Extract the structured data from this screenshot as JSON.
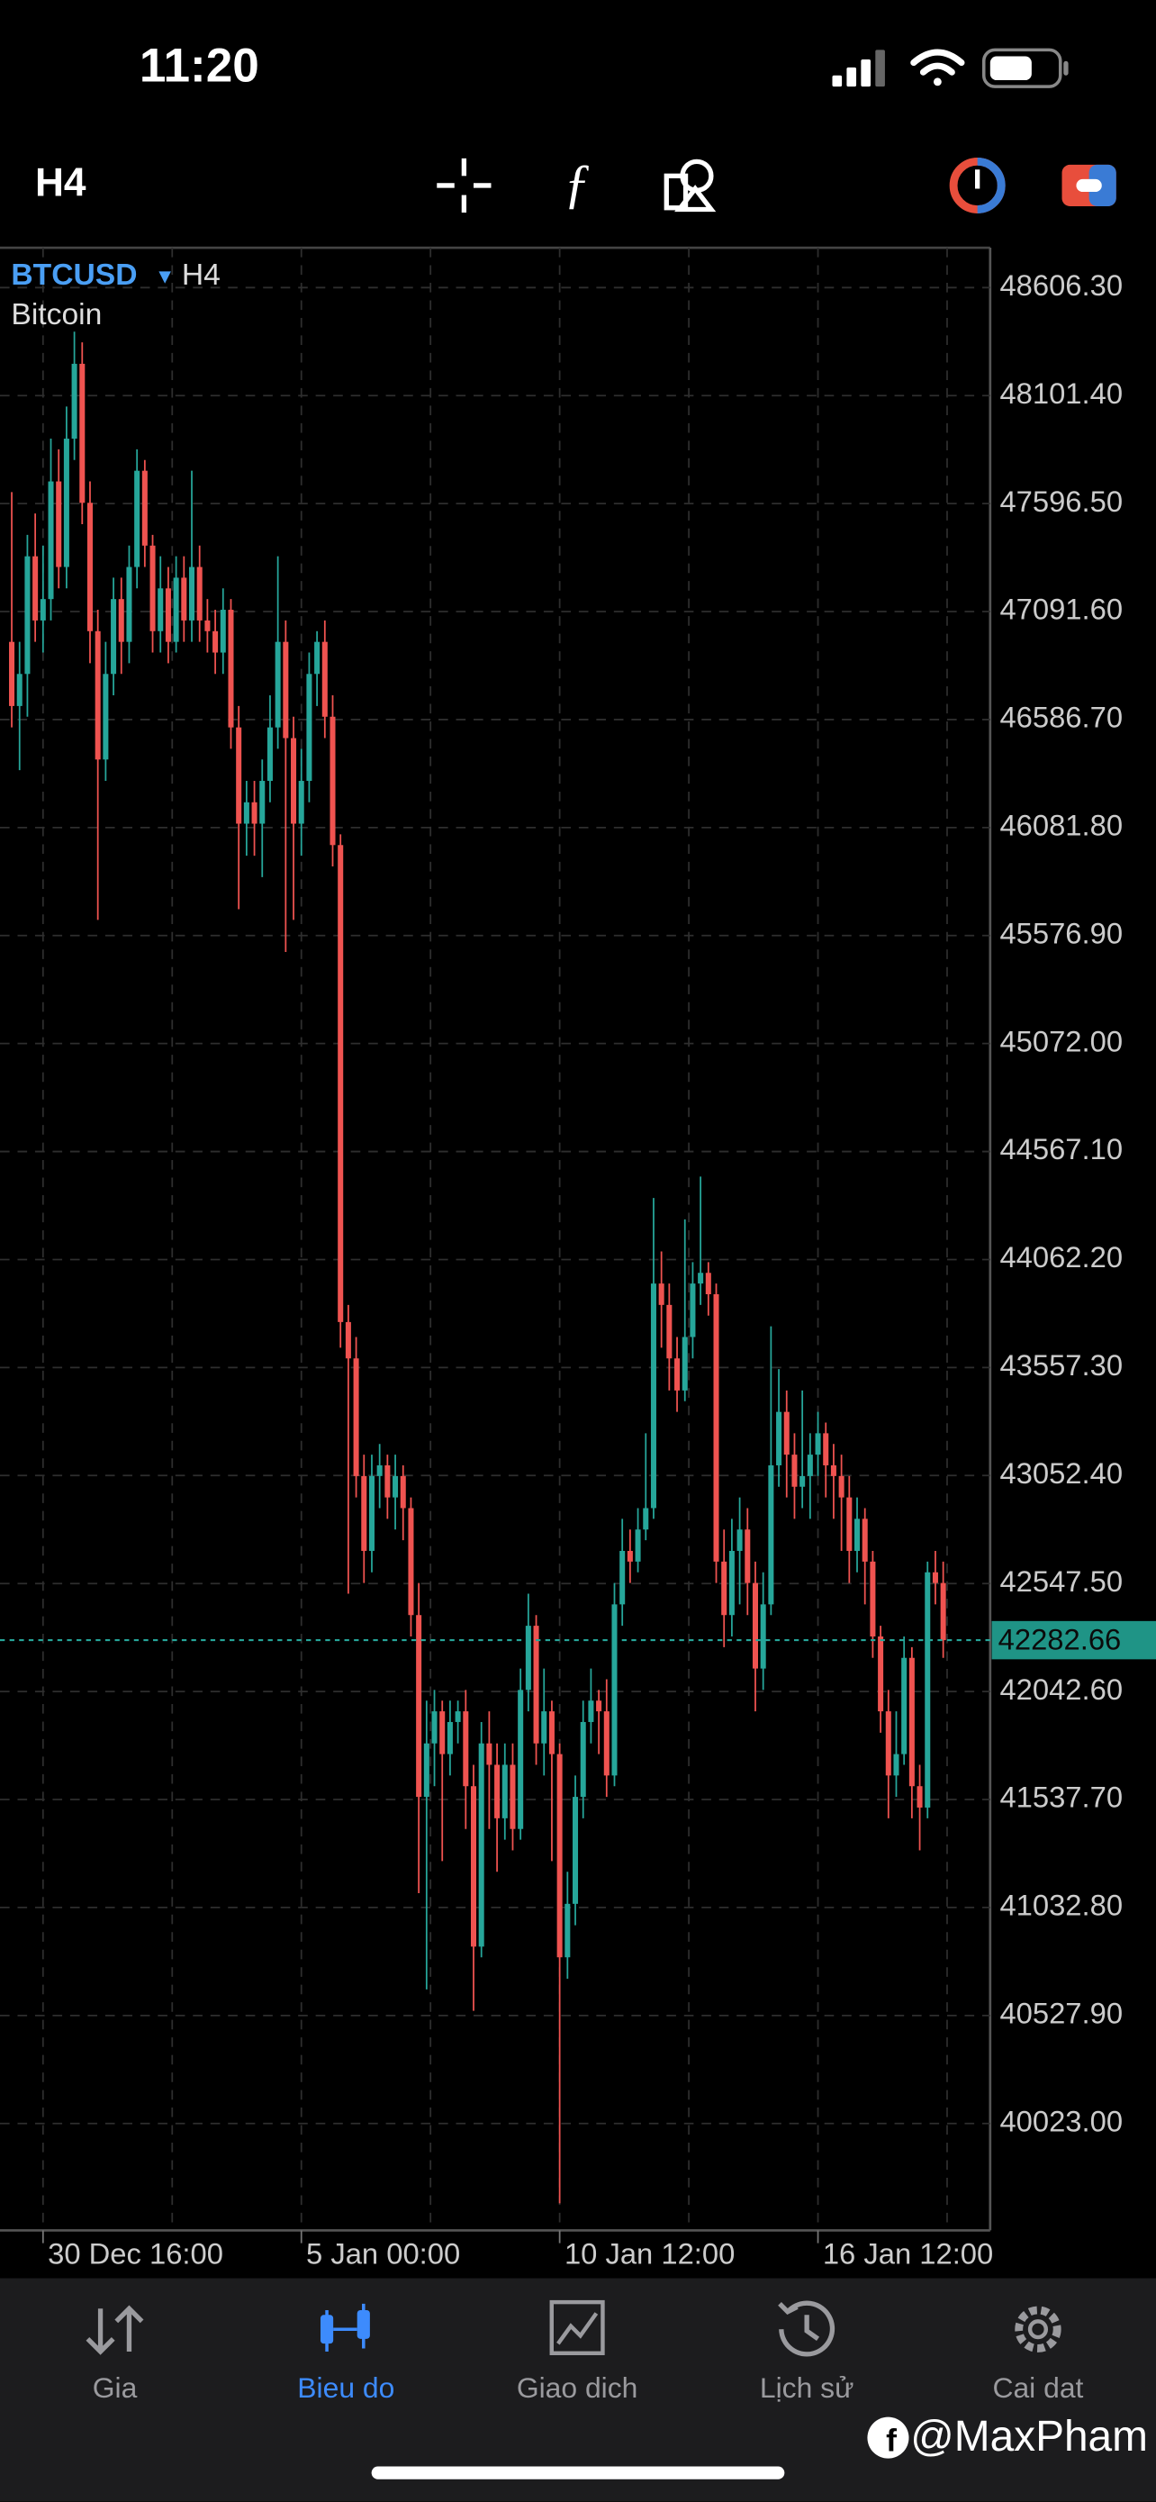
{
  "status_bar": {
    "time": "11:20"
  },
  "toolbar": {
    "timeframe": "H4"
  },
  "chart_data": {
    "type": "candlestick",
    "symbol": "BTCUSD",
    "timeframe": "H4",
    "name": "Bitcoin",
    "up_color": "#26a69a",
    "down_color": "#ef5350",
    "grid": true,
    "ylim": [
      39523.3,
      48792.8
    ],
    "yticks": [
      {
        "value": 48606.3,
        "label": "48606.30"
      },
      {
        "value": 48101.4,
        "label": "48101.40"
      },
      {
        "value": 47596.5,
        "label": "47596.50"
      },
      {
        "value": 47091.6,
        "label": "47091.60"
      },
      {
        "value": 46586.7,
        "label": "46586.70"
      },
      {
        "value": 46081.8,
        "label": "46081.80"
      },
      {
        "value": 45576.9,
        "label": "45576.90"
      },
      {
        "value": 45072,
        "label": "45072.00"
      },
      {
        "value": 44567.1,
        "label": "44567.10"
      },
      {
        "value": 44062.2,
        "label": "44062.20"
      },
      {
        "value": 43557.3,
        "label": "43557.30"
      },
      {
        "value": 43052.4,
        "label": "43052.40"
      },
      {
        "value": 42547.5,
        "label": "42547.50"
      },
      {
        "value": 42042.6,
        "label": "42042.60"
      },
      {
        "value": 41537.7,
        "label": "41537.70"
      },
      {
        "value": 41032.8,
        "label": "41032.80"
      },
      {
        "value": 40527.9,
        "label": "40527.90"
      },
      {
        "value": 40023,
        "label": "40023.00"
      }
    ],
    "xlim": [
      -1.5,
      125
    ],
    "xticks": [
      {
        "value": 4,
        "label": "30 Dec 16:00"
      },
      {
        "value": 37,
        "label": "5 Jan 00:00"
      },
      {
        "value": 70,
        "label": "10 Jan 12:00"
      },
      {
        "value": 103,
        "label": "16 Jan 12:00"
      }
    ],
    "xgrid": [
      4,
      20.5,
      37,
      53.5,
      70,
      86.5,
      103,
      119.5
    ],
    "current_price": 42282.66,
    "ohlc": [
      [
        46950,
        47650,
        46550,
        46650
      ],
      [
        46650,
        46950,
        46350,
        46800
      ],
      [
        46800,
        47450,
        46600,
        47350
      ],
      [
        47350,
        47550,
        46950,
        47050
      ],
      [
        47050,
        47400,
        46900,
        47150
      ],
      [
        47150,
        47900,
        47050,
        47700
      ],
      [
        47700,
        47850,
        47200,
        47300
      ],
      [
        47300,
        48050,
        47200,
        47900
      ],
      [
        47900,
        48400,
        47800,
        48250
      ],
      [
        48250,
        48350,
        47500,
        47600
      ],
      [
        47600,
        47700,
        46850,
        47000
      ],
      [
        47000,
        47100,
        45650,
        46400
      ],
      [
        46400,
        46950,
        46300,
        46800
      ],
      [
        46800,
        47250,
        46700,
        47150
      ],
      [
        47150,
        47250,
        46800,
        46950
      ],
      [
        46950,
        47400,
        46850,
        47300
      ],
      [
        47300,
        47850,
        47200,
        47750
      ],
      [
        47750,
        47800,
        47300,
        47400
      ],
      [
        47400,
        47450,
        46900,
        47000
      ],
      [
        47000,
        47350,
        46900,
        47200
      ],
      [
        47200,
        47300,
        46850,
        46950
      ],
      [
        46950,
        47350,
        46900,
        47250
      ],
      [
        47250,
        47350,
        46950,
        47050
      ],
      [
        47050,
        47750,
        46950,
        47300
      ],
      [
        47300,
        47400,
        46950,
        47050
      ],
      [
        47050,
        47150,
        46900,
        47000
      ],
      [
        47000,
        47100,
        46800,
        46900
      ],
      [
        46900,
        47200,
        46800,
        47100
      ],
      [
        47100,
        47150,
        46450,
        46550
      ],
      [
        46550,
        46650,
        45700,
        46100
      ],
      [
        46100,
        46300,
        45950,
        46200
      ],
      [
        46200,
        46300,
        45950,
        46100
      ],
      [
        46100,
        46400,
        45850,
        46300
      ],
      [
        46300,
        46700,
        46200,
        46550
      ],
      [
        46550,
        47350,
        46450,
        46950
      ],
      [
        46950,
        47050,
        45500,
        46500
      ],
      [
        46500,
        46600,
        45650,
        46100
      ],
      [
        46100,
        46450,
        45950,
        46300
      ],
      [
        46300,
        46900,
        46200,
        46800
      ],
      [
        46800,
        47000,
        46650,
        46950
      ],
      [
        46950,
        47050,
        46500,
        46600
      ],
      [
        46600,
        46700,
        45900,
        46000
      ],
      [
        46000,
        46050,
        43650,
        43770
      ],
      [
        43770,
        43850,
        42500,
        43600
      ],
      [
        43600,
        43700,
        42950,
        43050
      ],
      [
        43050,
        43150,
        42550,
        42700
      ],
      [
        42700,
        43150,
        42600,
        43050
      ],
      [
        43050,
        43200,
        42900,
        43100
      ],
      [
        43100,
        43150,
        42850,
        42950
      ],
      [
        42950,
        43150,
        42800,
        43050
      ],
      [
        43050,
        43100,
        42750,
        42900
      ],
      [
        42900,
        42950,
        42300,
        42400
      ],
      [
        42400,
        42550,
        41100,
        41550
      ],
      [
        41550,
        42000,
        40650,
        41800
      ],
      [
        41800,
        42050,
        41600,
        41950
      ],
      [
        41950,
        42000,
        41250,
        41750
      ],
      [
        41750,
        42000,
        41650,
        41900
      ],
      [
        41900,
        42000,
        41800,
        41950
      ],
      [
        41950,
        42050,
        41400,
        41600
      ],
      [
        41600,
        41700,
        40550,
        40850
      ],
      [
        40850,
        41900,
        40800,
        41800
      ],
      [
        41800,
        41950,
        41400,
        41700
      ],
      [
        41700,
        41800,
        41200,
        41450
      ],
      [
        41450,
        41800,
        41350,
        41700
      ],
      [
        41700,
        41800,
        41300,
        41400
      ],
      [
        41400,
        42150,
        41350,
        42050
      ],
      [
        42050,
        42500,
        41950,
        42350
      ],
      [
        42350,
        42400,
        41700,
        41800
      ],
      [
        41800,
        42150,
        41650,
        41950
      ],
      [
        41950,
        42000,
        41250,
        41750
      ],
      [
        41750,
        41800,
        39650,
        40800
      ],
      [
        40800,
        41200,
        40700,
        41050
      ],
      [
        41050,
        41650,
        40950,
        41550
      ],
      [
        41550,
        42000,
        41450,
        41900
      ],
      [
        41900,
        42150,
        41800,
        42000
      ],
      [
        42000,
        42050,
        41750,
        41950
      ],
      [
        41950,
        42100,
        41550,
        41650
      ],
      [
        41650,
        42550,
        41600,
        42450
      ],
      [
        42450,
        42850,
        42350,
        42700
      ],
      [
        42700,
        42800,
        42550,
        42650
      ],
      [
        42650,
        42900,
        42600,
        42800
      ],
      [
        42800,
        43250,
        42750,
        42900
      ],
      [
        42900,
        44350,
        42850,
        43950
      ],
      [
        43950,
        44100,
        43650,
        43850
      ],
      [
        43850,
        43950,
        43450,
        43600
      ],
      [
        43600,
        43700,
        43350,
        43450
      ],
      [
        43450,
        44250,
        43400,
        43700
      ],
      [
        43700,
        44050,
        43600,
        43950
      ],
      [
        43950,
        44450,
        43850,
        44000
      ],
      [
        44000,
        44050,
        43800,
        43900
      ],
      [
        43900,
        43950,
        42550,
        42650
      ],
      [
        42650,
        42800,
        42250,
        42400
      ],
      [
        42400,
        42850,
        42300,
        42700
      ],
      [
        42700,
        42950,
        42450,
        42800
      ],
      [
        42800,
        42900,
        42400,
        42550
      ],
      [
        42550,
        42650,
        41950,
        42150
      ],
      [
        42150,
        42600,
        42050,
        42450
      ],
      [
        42450,
        43750,
        42400,
        43100
      ],
      [
        43100,
        43550,
        43000,
        43350
      ],
      [
        43350,
        43450,
        42950,
        43150
      ],
      [
        43150,
        43250,
        42850,
        43000
      ],
      [
        43000,
        43450,
        42900,
        43050
      ],
      [
        43050,
        43250,
        42850,
        43150
      ],
      [
        43150,
        43350,
        43050,
        43250
      ],
      [
        43250,
        43300,
        42950,
        43100
      ],
      [
        43100,
        43200,
        42850,
        43050
      ],
      [
        43050,
        43150,
        42700,
        42950
      ],
      [
        42950,
        43050,
        42550,
        42700
      ],
      [
        42700,
        42950,
        42600,
        42850
      ],
      [
        42850,
        42900,
        42450,
        42650
      ],
      [
        42650,
        42700,
        42200,
        42300
      ],
      [
        42300,
        42350,
        41850,
        41950
      ],
      [
        41950,
        42050,
        41450,
        41650
      ],
      [
        41650,
        41950,
        41550,
        41750
      ],
      [
        41750,
        42300,
        41700,
        42200
      ],
      [
        42200,
        42250,
        41450,
        41600
      ],
      [
        41600,
        41700,
        41300,
        41500
      ],
      [
        41500,
        42650,
        41450,
        42600
      ],
      [
        42600,
        42700,
        42450,
        42550
      ],
      [
        42550,
        42650,
        42200,
        42282.66
      ]
    ]
  },
  "tab_bar": {
    "active": 1,
    "tabs": [
      "Gia",
      "Bieu do",
      "Giao dich",
      "Lịch sử",
      "Cai dat"
    ]
  },
  "watermark": "@MaxPham"
}
